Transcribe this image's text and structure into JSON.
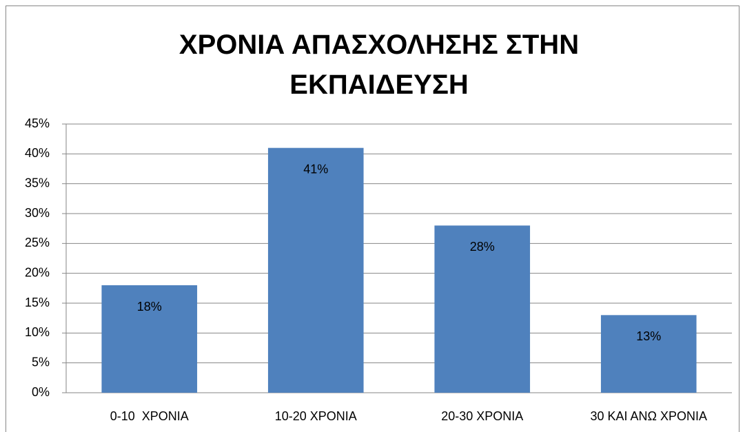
{
  "chart_data": {
    "type": "bar",
    "title": "ΧΡΟΝΙΑ ΑΠΑΣΧΟΛΗΣΗΣ ΣΤΗΝ ΕΚΠΑΙΔΕΥΣΗ",
    "categories": [
      "0-10  ΧΡΟΝΙΑ",
      "10-20 ΧΡΟΝΙΑ",
      "20-30 ΧΡΟΝΙΑ",
      "30 ΚΑΙ ΑΝΩ ΧΡΟΝΙΑ"
    ],
    "values": [
      18,
      41,
      28,
      13
    ],
    "value_labels": [
      "18%",
      "41%",
      "28%",
      "13%"
    ],
    "color": "#4f81bd",
    "ylim": [
      0,
      45
    ],
    "yticks": [
      {
        "value": 0,
        "label": "0%"
      },
      {
        "value": 5,
        "label": "5%"
      },
      {
        "value": 10,
        "label": "10%"
      },
      {
        "value": 15,
        "label": "15%"
      },
      {
        "value": 20,
        "label": "20%"
      },
      {
        "value": 25,
        "label": "25%"
      },
      {
        "value": 30,
        "label": "30%"
      },
      {
        "value": 35,
        "label": "35%"
      },
      {
        "value": 40,
        "label": "40%"
      },
      {
        "value": 45,
        "label": "45%"
      }
    ],
    "grid": true
  }
}
